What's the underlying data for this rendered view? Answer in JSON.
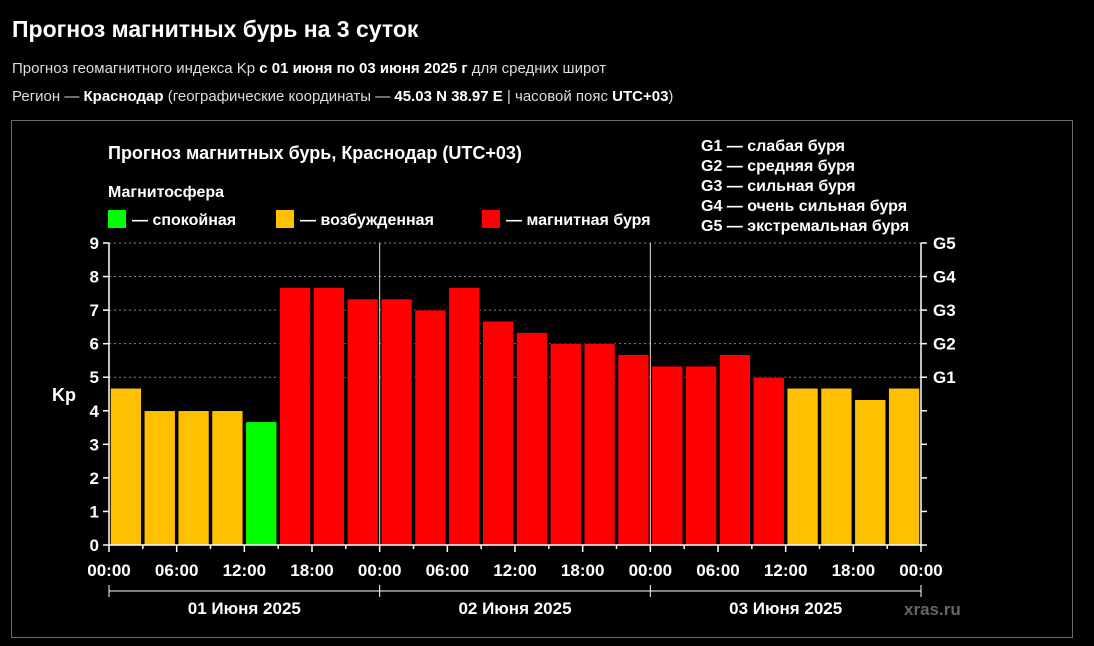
{
  "page": {
    "title": "Прогноз магнитных бурь на 3 суток",
    "line1": {
      "prefix": "Прогноз геомагнитного индекса Kp ",
      "range": "с 01 июня по 03 июня 2025 г",
      "suffix": " для средних широт"
    },
    "line2": {
      "prefix": "Регион — ",
      "region": "Краснодар",
      "middle": " (географические координаты — ",
      "coords": "45.03 N 38.97 E",
      "sep": " | часовой пояс ",
      "tz": "UTC+03",
      "end": ")"
    }
  },
  "chart_data": {
    "type": "bar",
    "title": "Прогноз магнитных бурь, Краснодар (UTC+03)",
    "ylabel": "Kp",
    "ylim": [
      0,
      9
    ],
    "yticks": [
      "0",
      "1",
      "2",
      "3",
      "4",
      "5",
      "6",
      "7",
      "8",
      "9"
    ],
    "g_scale": [
      {
        "label": "G1",
        "kp": 5
      },
      {
        "label": "G2",
        "kp": 6
      },
      {
        "label": "G3",
        "kp": 7
      },
      {
        "label": "G4",
        "kp": 8
      },
      {
        "label": "G5",
        "kp": 9
      }
    ],
    "g_legend": [
      "G1 — слабая буря",
      "G2 — средняя буря",
      "G3 — сильная буря",
      "G4 — очень сильная буря",
      "G5 — экстремальная буря"
    ],
    "legend_title": "Магнитосфера",
    "legend": [
      {
        "label": "— спокойная",
        "color": "#00ff00"
      },
      {
        "label": "— возбужденная",
        "color": "#ffc000"
      },
      {
        "label": "— магнитная буря",
        "color": "#ff0000"
      }
    ],
    "xticks": [
      "00:00",
      "06:00",
      "12:00",
      "18:00",
      "00:00",
      "06:00",
      "12:00",
      "18:00",
      "00:00",
      "06:00",
      "12:00",
      "18:00",
      "00:00"
    ],
    "days": [
      "01 Июня 2025",
      "02 Июня 2025",
      "03 Июня 2025"
    ],
    "values": [
      4.67,
      4,
      4,
      4,
      3.67,
      7.67,
      7.67,
      7.33,
      7.33,
      7,
      7.67,
      6.67,
      6.33,
      6,
      6,
      5.67,
      5.33,
      5.33,
      5.67,
      5,
      4.67,
      4.67,
      4.33,
      4.67
    ],
    "colors": {
      "quiet": "#00ff00",
      "active": "#ffc000",
      "storm": "#ff0000",
      "plot_bg": "#000000",
      "grid": "#888888"
    },
    "watermark": "xras.ru"
  }
}
